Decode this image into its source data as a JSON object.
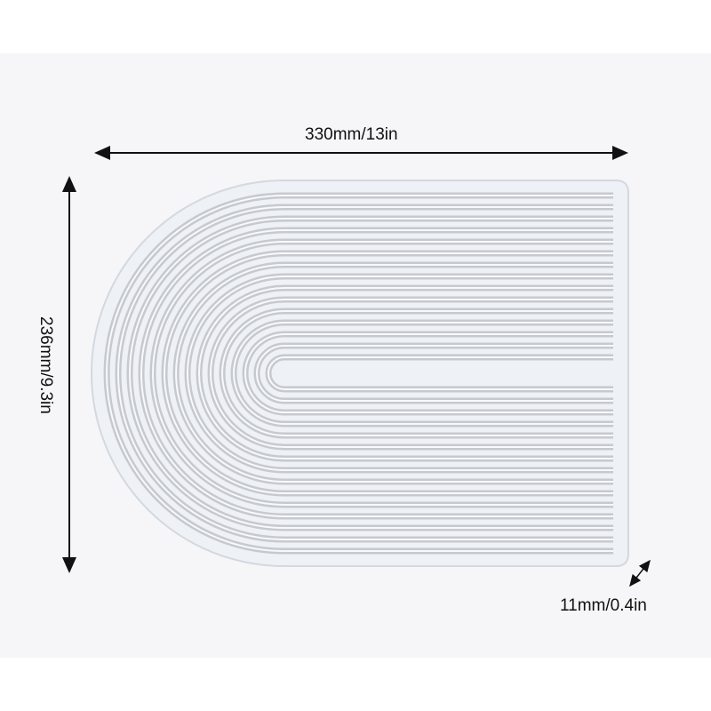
{
  "dimensions": {
    "width_label": "330mm/13in",
    "height_label": "236mm/9.3in",
    "thickness_label": "11mm/0.4in"
  },
  "colors": {
    "mold": "#e8ecf3",
    "groove": "#c9ccd2",
    "arrow": "#111111"
  }
}
